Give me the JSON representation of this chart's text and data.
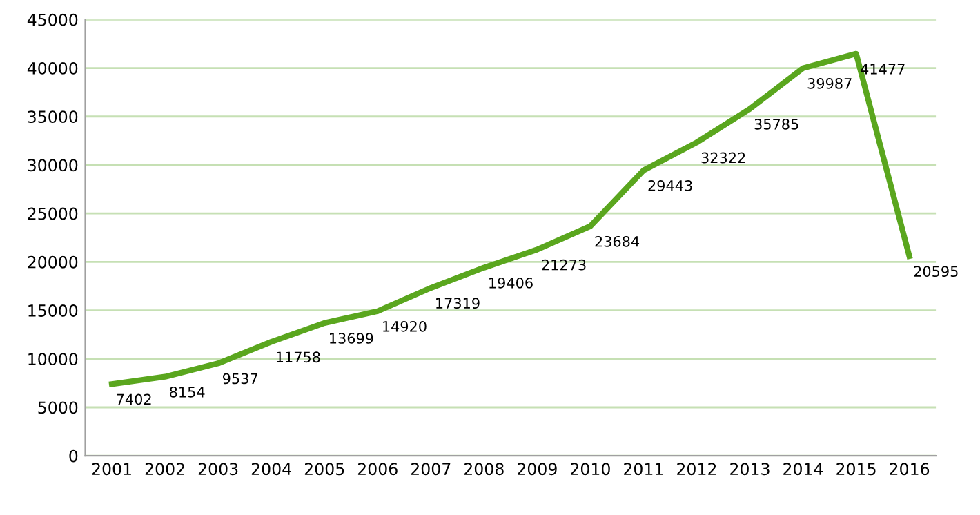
{
  "chart_data": {
    "type": "line",
    "categories": [
      "2001",
      "2002",
      "2003",
      "2004",
      "2005",
      "2006",
      "2007",
      "2008",
      "2009",
      "2010",
      "2011",
      "2012",
      "2013",
      "2014",
      "2015",
      "2016"
    ],
    "series": [
      {
        "color": "#5aa61e",
        "values": [
          7402,
          8154,
          9537,
          11758,
          13699,
          14920,
          17319,
          19406,
          21273,
          23684,
          29443,
          32322,
          35785,
          39987,
          41477,
          20595
        ]
      }
    ],
    "ylim": [
      0,
      45000
    ],
    "yticks": [
      0,
      5000,
      10000,
      15000,
      20000,
      25000,
      30000,
      35000,
      40000,
      45000
    ],
    "grid": "y",
    "data_labels": true,
    "marker": "none",
    "line_style": "solid"
  }
}
